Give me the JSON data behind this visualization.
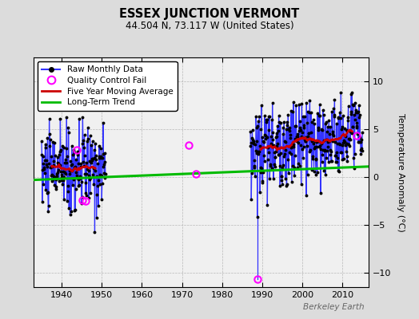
{
  "title": "ESSEX JUNCTION VERMONT",
  "subtitle": "44.504 N, 73.117 W (United States)",
  "ylabel": "Temperature Anomaly (°C)",
  "watermark": "Berkeley Earth",
  "bg_color": "#dcdcdc",
  "plot_bg_color": "#f0f0f0",
  "ylim": [
    -11.5,
    12.5
  ],
  "yticks": [
    -10,
    -5,
    0,
    5,
    10
  ],
  "xlim": [
    1933,
    2016.5
  ],
  "xticks": [
    1940,
    1950,
    1960,
    1970,
    1980,
    1990,
    2000,
    2010
  ],
  "raw_color": "#3333ff",
  "dot_color": "#000000",
  "qc_color": "#ff00ff",
  "ma_color": "#cc0000",
  "trend_color": "#00bb00",
  "trend_x": [
    1933,
    2016.5
  ],
  "trend_y": [
    -0.3,
    1.1
  ],
  "qc_fail_points": [
    [
      1943.75,
      2.8
    ],
    [
      1945.25,
      -2.4
    ],
    [
      1946.0,
      -2.5
    ],
    [
      1971.75,
      3.3
    ],
    [
      1973.5,
      0.3
    ],
    [
      1988.75,
      -10.7
    ],
    [
      2013.5,
      4.3
    ]
  ]
}
